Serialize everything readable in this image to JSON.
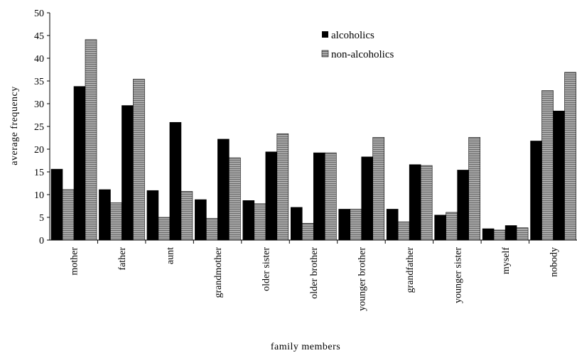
{
  "chart_data": {
    "type": "bar",
    "categories": [
      "mother",
      "father",
      "aunt",
      "grandmother",
      "older sister",
      "older brother",
      "younger brother",
      "grandfather",
      "younger sister",
      "myself",
      "nobody"
    ],
    "series_groups": 4,
    "series": [
      {
        "name": "alcoholics",
        "color": "#000000",
        "values_a": [
          15.6,
          11.1,
          10.9,
          8.9,
          8.7,
          7.2,
          6.8,
          6.8,
          5.5,
          2.5,
          21.8
        ],
        "values_b": [
          33.8,
          29.6,
          25.9,
          22.2,
          19.4,
          19.2,
          18.3,
          16.6,
          15.4,
          3.2,
          28.4
        ]
      },
      {
        "name": "non-alcoholics",
        "color": "#9a9a9a",
        "values_a": [
          11.1,
          8.2,
          5.0,
          4.8,
          8.0,
          3.7,
          6.8,
          4.0,
          6.1,
          2.2,
          32.9
        ],
        "values_b": [
          44.1,
          35.4,
          10.7,
          18.1,
          23.4,
          19.2,
          22.6,
          16.4,
          22.6,
          2.7,
          36.9
        ]
      }
    ],
    "xlabel": "family members",
    "ylabel": "average frequency",
    "ylim": [
      0,
      50
    ],
    "yticks": [
      "0",
      "5",
      "10",
      "15",
      "20",
      "25",
      "30",
      "35",
      "40",
      "45",
      "50"
    ],
    "legend_position": "top-center",
    "grid": false
  }
}
